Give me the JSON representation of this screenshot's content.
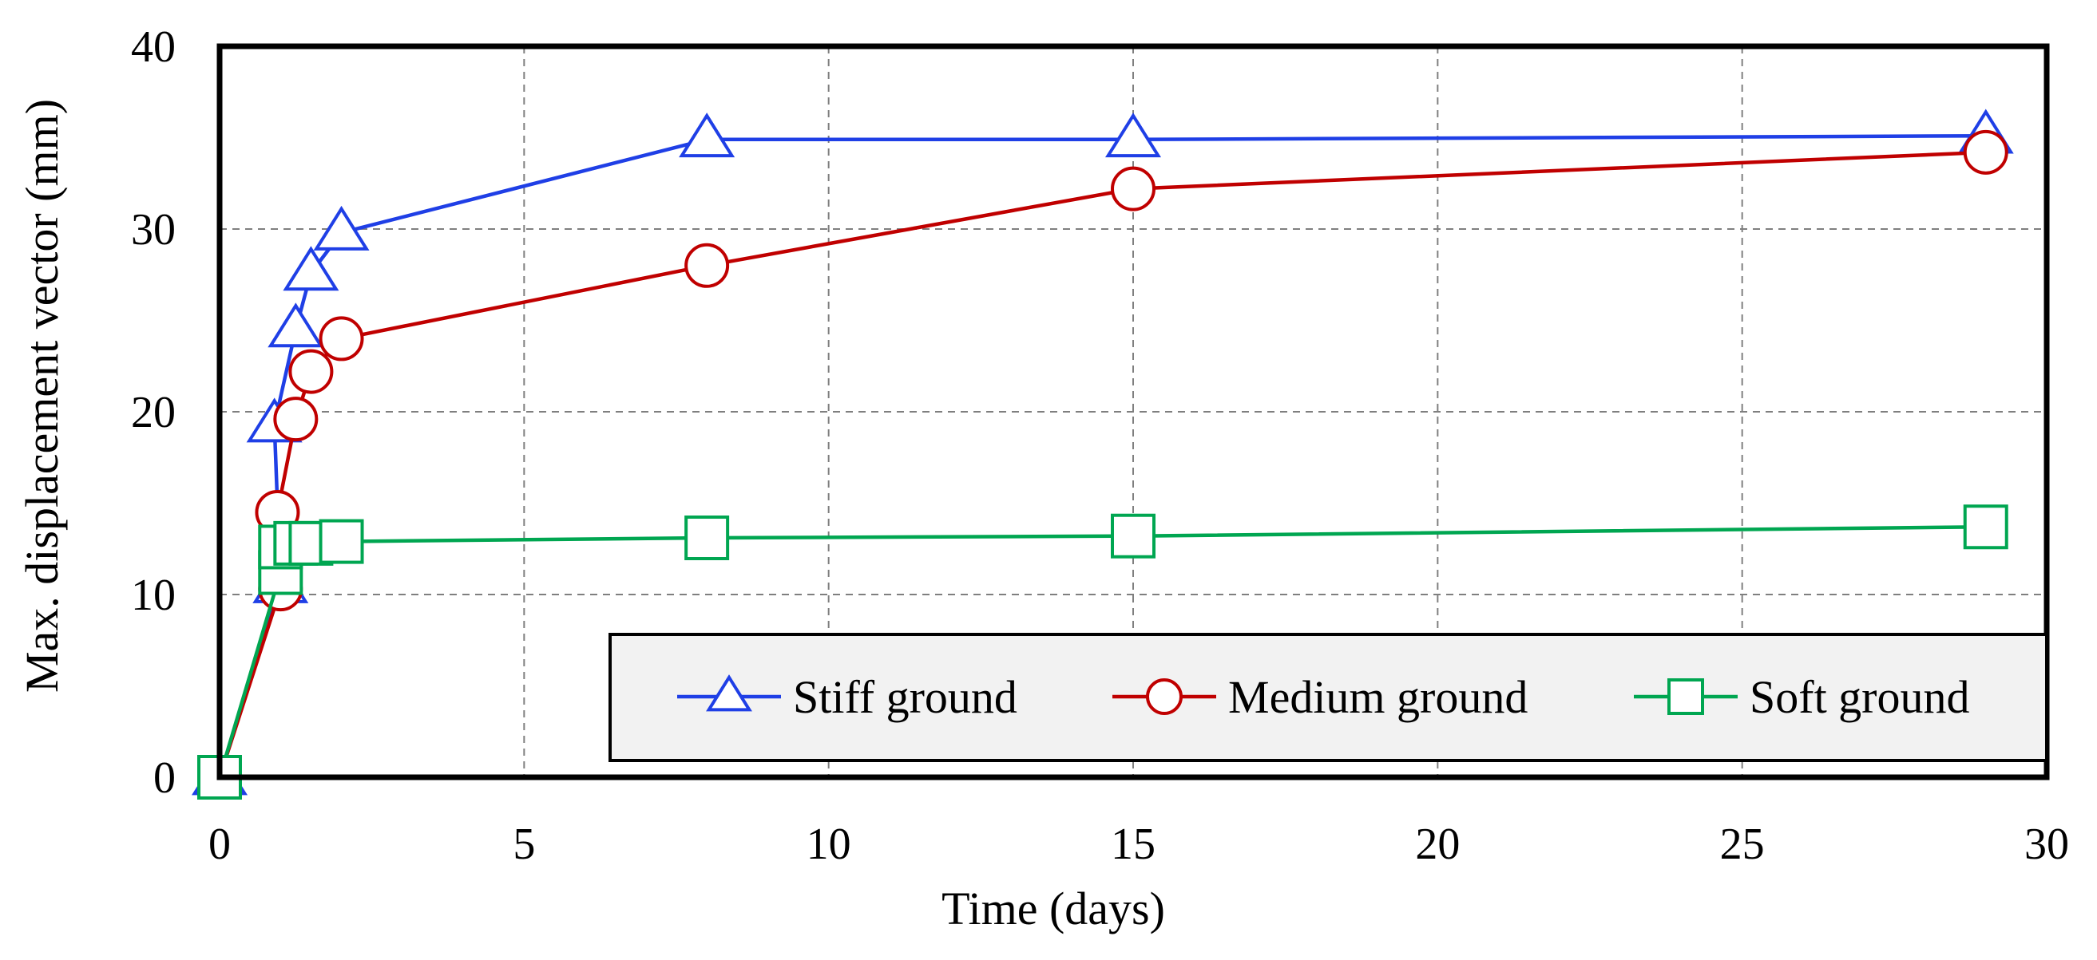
{
  "chart_data": {
    "type": "line",
    "title": "",
    "xlabel": "Time (days)",
    "ylabel": "Max. displacement vector (mm)",
    "xlim": [
      0,
      30
    ],
    "ylim": [
      0,
      40
    ],
    "xticks": [
      0,
      5,
      10,
      15,
      20,
      25,
      30
    ],
    "yticks": [
      0,
      10,
      20,
      30,
      40
    ],
    "x_tick_labels": [
      "0",
      "5",
      "10",
      "15",
      "20",
      "25",
      "30"
    ],
    "y_tick_labels": [
      "0",
      "10",
      "20",
      "30",
      "40"
    ],
    "grid": true,
    "legend_position": "bottom-right",
    "series": [
      {
        "name": "Stiff ground",
        "marker": "triangle",
        "color": "#1f3fe6",
        "x": [
          0,
          1,
          0.9,
          1.25,
          1.5,
          2,
          8,
          15,
          29
        ],
        "y": [
          0,
          10.5,
          19.3,
          24.5,
          27.6,
          29.8,
          34.9,
          34.9,
          35.1
        ]
      },
      {
        "name": "Medium ground",
        "marker": "circle",
        "color": "#c00000",
        "x": [
          0,
          1,
          0.95,
          1.25,
          1.5,
          2,
          8,
          15,
          29
        ],
        "y": [
          0,
          10.3,
          14.5,
          19.6,
          22.2,
          24.0,
          28.0,
          32.2,
          34.2
        ]
      },
      {
        "name": "Soft ground",
        "marker": "square",
        "color": "#00a651",
        "x": [
          0,
          1,
          1,
          1.25,
          1.5,
          2,
          8,
          15,
          29
        ],
        "y": [
          0,
          11.2,
          12.6,
          12.8,
          12.8,
          12.9,
          13.1,
          13.2,
          13.7
        ]
      }
    ]
  }
}
